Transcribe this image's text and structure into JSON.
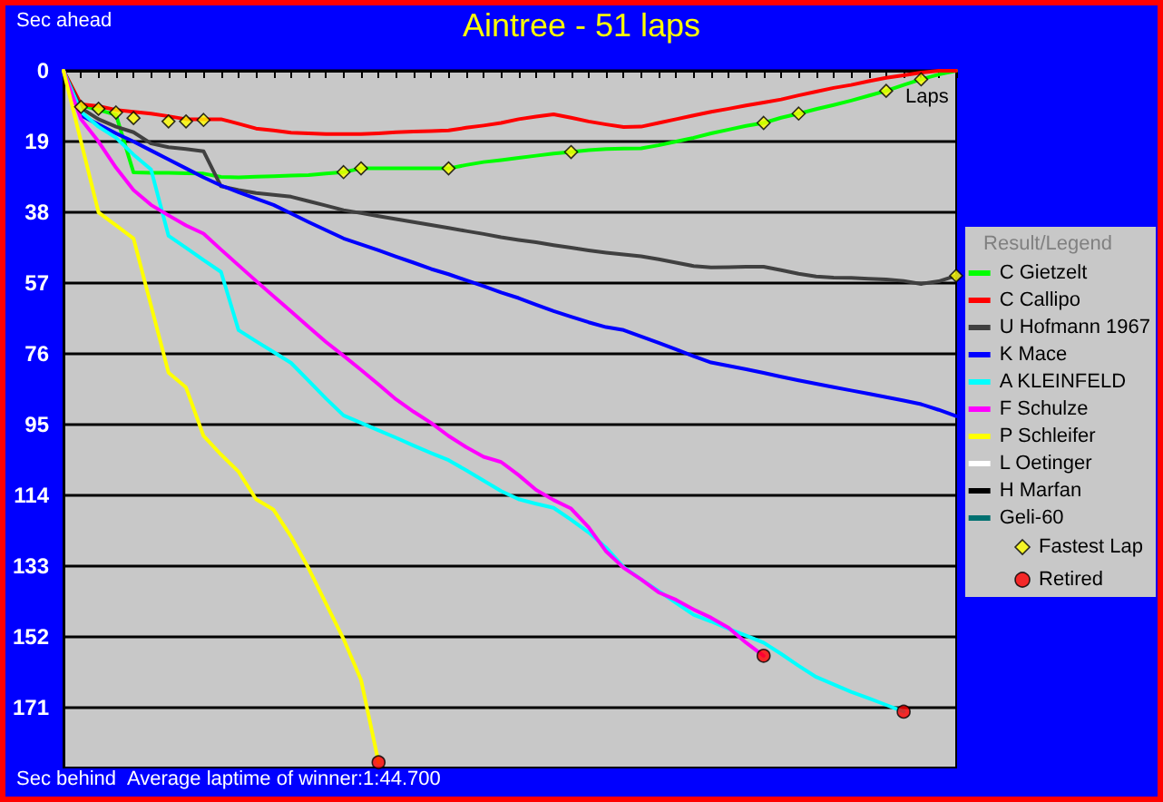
{
  "chart_data": {
    "type": "line",
    "title": "Aintree - 51 laps",
    "ylabel": "Sec ahead",
    "xlabel": "Laps",
    "legend_title": "Result/Legend",
    "legend": "right",
    "grid": "y",
    "tick_labels": "y",
    "marker": "none",
    "line_style": "solid",
    "annotations": [
      "Sec behind",
      "Average laptime of winner:1:44.700"
    ],
    "categories": [
      null,
      null,
      null,
      null,
      null,
      null,
      null,
      null,
      null,
      null,
      null,
      null,
      null,
      null,
      null,
      null,
      null,
      null,
      null,
      null,
      null,
      null,
      null,
      null,
      null,
      null,
      null,
      null,
      null,
      null,
      null,
      null,
      null,
      null,
      null,
      null,
      null,
      null,
      null,
      null,
      null,
      null,
      null,
      null,
      null,
      null,
      null,
      null,
      null,
      null,
      null,
      null
    ],
    "ylim": [
      187,
      0
    ],
    "yticks": [
      0,
      19,
      38,
      57,
      76,
      95,
      114,
      133,
      152,
      171
    ],
    "series": [
      {
        "name": "C Gietzelt",
        "color": "#00ff00",
        "values": [
          0,
          9.3,
          10.5,
          11.8,
          27.3,
          27.4,
          27.4,
          27.5,
          27.6,
          28.5,
          28.6,
          28.4,
          28.3,
          28.1,
          28,
          27.6,
          27.2,
          26.2,
          26.2,
          26.2,
          26.2,
          26.2,
          26.2,
          25.3,
          24.5,
          24,
          23.4,
          22.8,
          22.2,
          21.8,
          21.3,
          21,
          20.9,
          20.8,
          20,
          19,
          18,
          16.8,
          15.8,
          14.8,
          14,
          12.6,
          11.5,
          10.3,
          9.2,
          8,
          6.7,
          5.4,
          3.8,
          2.3,
          1,
          0
        ]
      },
      {
        "name": "C Callipo",
        "color": "#ff0000",
        "values": [
          0,
          9,
          9.5,
          10.5,
          11,
          11.5,
          12.2,
          13,
          13,
          13,
          14.2,
          15.5,
          16,
          16.6,
          16.8,
          17,
          17,
          17,
          16.8,
          16.5,
          16.3,
          16.2,
          16,
          15.3,
          14.7,
          14,
          13,
          12.3,
          11.7,
          12.6,
          13.6,
          14.4,
          15.1,
          15,
          14,
          13,
          12,
          11,
          10.2,
          9.3,
          8.5,
          7.7,
          6.6,
          5.6,
          4.6,
          3.8,
          2.8,
          1.9,
          1.2,
          0.5,
          0,
          0
        ]
      },
      {
        "name": "U Hofmann 1967",
        "color": "#404040",
        "values": [
          0,
          10,
          13,
          15,
          16.5,
          19.5,
          20.5,
          21,
          21.6,
          31,
          32,
          32.8,
          33.3,
          33.8,
          35,
          36.2,
          37.4,
          38.2,
          39,
          39.8,
          40.6,
          41.4,
          42.2,
          43,
          43.8,
          44.7,
          45.4,
          46,
          46.8,
          47.5,
          48.2,
          48.8,
          49.3,
          49.8,
          50.6,
          51.5,
          52.4,
          52.8,
          52.7,
          52.6,
          52.6,
          53.5,
          54.5,
          55.2,
          55.5,
          55.6,
          55.8,
          56,
          56.4,
          57.2,
          56.5,
          55
        ]
      },
      {
        "name": "K Mace",
        "color": "#0000ff",
        "values": [
          0,
          12,
          14.4,
          16.8,
          19,
          21.4,
          23.8,
          26.2,
          28.6,
          30.8,
          32.6,
          34.3,
          36,
          38.3,
          40.6,
          42.8,
          45,
          46.6,
          48.2,
          49.9,
          51.5,
          53.2,
          54.6,
          56.2,
          57.8,
          59.5,
          61,
          62.8,
          64.5,
          66,
          67.5,
          68.8,
          69.6,
          71.3,
          73,
          74.8,
          76.6,
          78.3,
          79.2,
          80.1,
          81.1,
          82.1,
          83.1,
          84,
          84.9,
          85.8,
          86.7,
          87.6,
          88.5,
          89.5,
          91,
          92.7
        ]
      },
      {
        "name": "A KLEINFELD",
        "color": "#00ffff",
        "values": [
          0,
          11,
          15,
          18,
          22.5,
          26.5,
          44.3,
          47.5,
          50.8,
          54,
          69.6,
          72.6,
          75.5,
          78.4,
          83.2,
          88,
          92.5,
          94.5,
          96.5,
          98.5,
          100.6,
          102.6,
          104.5,
          107.2,
          110,
          112.8,
          115,
          116.2,
          117.3,
          120.5,
          123.9,
          128,
          133.2,
          136.5,
          139.6,
          142.8,
          146,
          147.8,
          149.8,
          151.6,
          153.5,
          156.5,
          159.7,
          162.7,
          164.7,
          166.7,
          168.4,
          170.2,
          172,
          null,
          null,
          null
        ]
      },
      {
        "name": "F Schulze",
        "color": "#ff00ff",
        "values": [
          0,
          13,
          19,
          26,
          32,
          36,
          38.8,
          41.5,
          43.7,
          48,
          52.2,
          56.4,
          60.5,
          64.6,
          68.7,
          72.8,
          76.5,
          80.3,
          84.2,
          88.2,
          91.5,
          94.5,
          98,
          101,
          103.6,
          105,
          108.5,
          112.5,
          115.2,
          117.5,
          122.5,
          129,
          133.4,
          136.5,
          140,
          142,
          144.6,
          146.8,
          149.5,
          153.5,
          157,
          null,
          null,
          null,
          null,
          null,
          null,
          null,
          null,
          null,
          null,
          null
        ]
      },
      {
        "name": "P Schleifer",
        "color": "#ffff00",
        "values": [
          0,
          19,
          38,
          41.5,
          45,
          63,
          81,
          85,
          98,
          103,
          107.6,
          115,
          117.8,
          125,
          133.5,
          143,
          152.5,
          163.5,
          185.6,
          null,
          null,
          null,
          null,
          null,
          null,
          null,
          null,
          null,
          null,
          null,
          null,
          null,
          null,
          null,
          null,
          null,
          null,
          null,
          null,
          null,
          null,
          null,
          null,
          null,
          null,
          null,
          null,
          null,
          null,
          null,
          null,
          null
        ]
      },
      {
        "name": "L Oetinger",
        "color": "#ffffff",
        "values": [
          null,
          null,
          null,
          null,
          null,
          null,
          null,
          null,
          null,
          null,
          null,
          null,
          null,
          null,
          null,
          null,
          null,
          null,
          null,
          null,
          null,
          null,
          null,
          null,
          null,
          null,
          null,
          null,
          null,
          null,
          null,
          null,
          null,
          null,
          null,
          null,
          null,
          null,
          null,
          null,
          null,
          null,
          null,
          null,
          null,
          null,
          null,
          null,
          null,
          null,
          null,
          null
        ]
      },
      {
        "name": "H Marfan",
        "color": "#000000",
        "values": [
          null,
          null,
          null,
          null,
          null,
          null,
          null,
          null,
          null,
          null,
          null,
          null,
          null,
          null,
          null,
          null,
          null,
          null,
          null,
          null,
          null,
          null,
          null,
          null,
          null,
          null,
          null,
          null,
          null,
          null,
          null,
          null,
          null,
          null,
          null,
          null,
          null,
          null,
          null,
          null,
          null,
          null,
          null,
          null,
          null,
          null,
          null,
          null,
          null,
          null,
          null,
          null
        ]
      },
      {
        "name": "Geli-60",
        "color": "#007070",
        "values": [
          null,
          null,
          null,
          null,
          null,
          null,
          null,
          null,
          null,
          null,
          null,
          null,
          null,
          null,
          null,
          null,
          null,
          null,
          null,
          null,
          null,
          null,
          null,
          null,
          null,
          null,
          null,
          null,
          null,
          null,
          null,
          null,
          null,
          null,
          null,
          null,
          null,
          null,
          null,
          null,
          null,
          null,
          null,
          null,
          null,
          null,
          null,
          null,
          null,
          null,
          null,
          null
        ]
      },
      {
        "name": "Fastest Lap",
        "type": "scatter",
        "marker": "diamond",
        "color": "#ffff00",
        "values": [
          null,
          9.7,
          10.2,
          11.2,
          12.7,
          null,
          13.6,
          13.6,
          13.2,
          null,
          null,
          null,
          null,
          null,
          null,
          null,
          27.2,
          26.2,
          null,
          null,
          null,
          null,
          26.2,
          null,
          null,
          null,
          null,
          null,
          null,
          21.8,
          null,
          null,
          null,
          null,
          null,
          null,
          null,
          null,
          null,
          null,
          14,
          null,
          11.5,
          null,
          null,
          null,
          null,
          5.4,
          null,
          2.3,
          null,
          55
        ]
      },
      {
        "name": "Retired",
        "type": "scatter",
        "marker": "circle",
        "color": "#ff0000",
        "values": [
          null,
          null,
          null,
          null,
          null,
          null,
          null,
          null,
          null,
          null,
          null,
          null,
          null,
          null,
          null,
          null,
          null,
          null,
          185.6,
          null,
          null,
          null,
          null,
          null,
          null,
          null,
          null,
          null,
          null,
          null,
          null,
          null,
          null,
          null,
          null,
          null,
          null,
          null,
          null,
          null,
          157,
          null,
          null,
          null,
          null,
          null,
          null,
          null,
          172,
          null,
          null,
          null
        ]
      }
    ]
  }
}
